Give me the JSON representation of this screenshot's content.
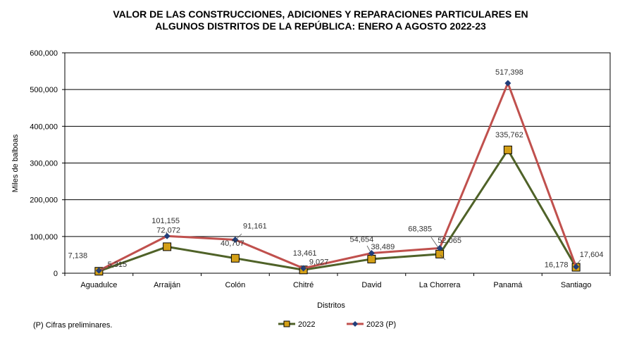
{
  "chart_data": {
    "type": "line",
    "title_line1": "VALOR DE LAS CONSTRUCCIONES, ADICIONES Y REPARACIONES PARTICULARES EN",
    "title_line2": "ALGUNOS DISTRITOS DE LA REPÚBLICA: ENERO A AGOSTO  2022-23",
    "xlabel": "Distritos",
    "ylabel": "Miles de balboas",
    "categories": [
      "Aguadulce",
      "Arraiján",
      "Colón",
      "Chitré",
      "David",
      "La Chorrera",
      "Panamá",
      "Santiago"
    ],
    "ylim": [
      0,
      600000
    ],
    "yticks": [
      "0",
      "100,000",
      "200,000",
      "300,000",
      "400,000",
      "500,000",
      "600,000"
    ],
    "grid": true,
    "legend_position": "bottom",
    "series": [
      {
        "name": "2022",
        "color": "#4f6228",
        "marker": "square",
        "marker_color": "#d4a017",
        "values": [
          5315,
          72072,
          40707,
          9027,
          38489,
          52065,
          335762,
          16178
        ],
        "labels": [
          "5,315",
          "72,072",
          "40,707",
          "9,027",
          "38,489",
          "52,065",
          "335,762",
          "16,178"
        ]
      },
      {
        "name": "2023 (P)",
        "color": "#c0504d",
        "marker": "diamond",
        "marker_color": "#1f3d7a",
        "values": [
          7138,
          101155,
          91161,
          13461,
          54654,
          68385,
          517398,
          17604
        ],
        "labels": [
          "7,138",
          "101,155",
          "91,161",
          "13,461",
          "54,654",
          "68,385",
          "517,398",
          "17,604"
        ]
      }
    ]
  },
  "footnote": "(P) Cifras  preliminares."
}
